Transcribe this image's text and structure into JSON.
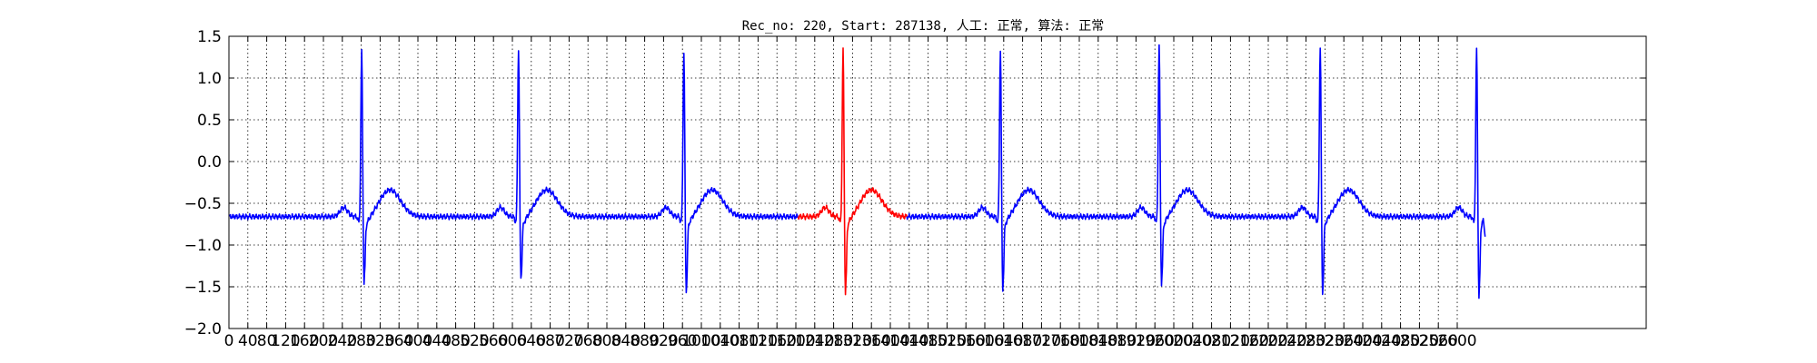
{
  "chart_data": {
    "type": "line",
    "title": "Rec_no: 220, Start: 287138, 人工: 正常, 算法: 正常",
    "xlabel": "",
    "ylabel": "",
    "xlim": [
      0,
      3000
    ],
    "ylim": [
      -2.0,
      1.5
    ],
    "x_tick_labels": [
      "0",
      "40",
      "80",
      "120",
      "160",
      "200",
      "240",
      "280",
      "320",
      "360",
      "400",
      "440",
      "480",
      "520",
      "560",
      "600",
      "640",
      "680",
      "720",
      "760",
      "800",
      "840",
      "880",
      "920",
      "960",
      "1000",
      "1040",
      "1080",
      "1120",
      "1160",
      "1200",
      "1240",
      "1280",
      "1320",
      "1360",
      "1400",
      "1440",
      "1480",
      "1520",
      "1560",
      "1600",
      "1640",
      "1680",
      "1720",
      "1760",
      "1800",
      "1840",
      "1880",
      "1920",
      "1960",
      "2000",
      "2040",
      "2080",
      "2120",
      "2160",
      "2200",
      "2240",
      "2280",
      "2320",
      "2360",
      "2400",
      "2440",
      "2480",
      "2520",
      "2560",
      "2600"
    ],
    "y_ticks": [
      -2.0,
      -1.5,
      -1.0,
      -0.5,
      0.0,
      0.5,
      1.0,
      1.5
    ],
    "y_tick_labels": [
      "−2.0",
      "−1.5",
      "−1.0",
      "−0.5",
      "0.0",
      "0.5",
      "1.0",
      "1.5"
    ],
    "grid": true,
    "beats_x": [
      281,
      613,
      963,
      1300,
      1633,
      1969,
      2310,
      2641
    ],
    "beat_peaks": [
      1.4,
      1.43,
      1.4,
      1.42,
      1.42,
      1.48,
      1.47,
      1.43
    ],
    "beat_troughs": [
      -1.6,
      -1.55,
      -1.7,
      -1.72,
      -1.67,
      -1.6,
      -1.72,
      -1.77
    ],
    "series": [
      {
        "color": "#0000ff",
        "segment": [
          0,
          1205
        ]
      },
      {
        "color": "#ff0000",
        "segment": [
          1205,
          1435
        ]
      },
      {
        "color": "#0000ff",
        "segment": [
          1435,
          2655
        ]
      }
    ],
    "colors": {
      "signal": "#0000ff",
      "highlight": "#ff0000"
    }
  }
}
